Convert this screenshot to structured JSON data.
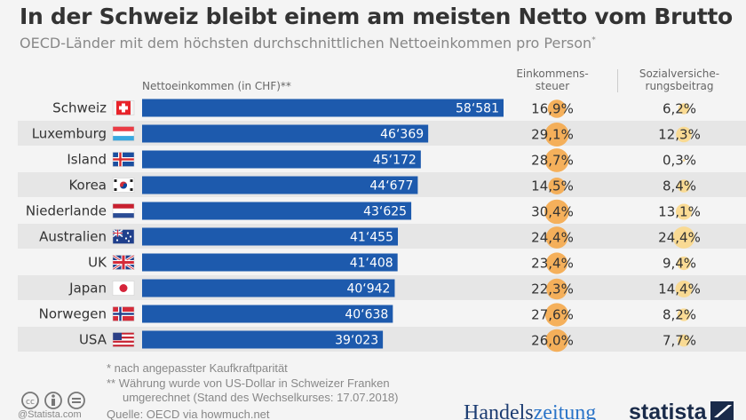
{
  "title": "In der Schweiz bleibt einem am meisten Netto vom Brutto",
  "subtitle": "OECD-Länder mit dem höchsten durchschnittlichen Nettoeinkommen pro Person",
  "subtitle_mark": "*",
  "columns": {
    "net_income": "Nettoeinkommen (in CHF)**",
    "income_tax_1": "Einkommens-",
    "income_tax_2": "steuer",
    "social_1": "Sozialversiche-",
    "social_2": "rungsbeitrag"
  },
  "chart_data": {
    "type": "bar",
    "orientation": "horizontal",
    "categories": [
      "Schweiz",
      "Luxemburg",
      "Island",
      "Korea",
      "Niederlande",
      "Australien",
      "UK",
      "Japan",
      "Norwegen",
      "USA"
    ],
    "series": [
      {
        "name": "Nettoeinkommen (in CHF)**",
        "values": [
          58581,
          46369,
          45172,
          44677,
          43625,
          41455,
          41408,
          40942,
          40638,
          39023
        ],
        "labels": [
          "58‘581",
          "46‘369",
          "45‘172",
          "44‘677",
          "43‘625",
          "41‘455",
          "41‘408",
          "40‘942",
          "40‘638",
          "39‘023"
        ]
      },
      {
        "name": "Einkommenssteuer",
        "values": [
          16.9,
          29.1,
          28.7,
          14.5,
          30.4,
          24.4,
          23.4,
          22.3,
          27.6,
          26.0
        ],
        "labels": [
          "16,9%",
          "29,1%",
          "28,7%",
          "14,5%",
          "30,4%",
          "24,4%",
          "23,4%",
          "22,3%",
          "27,6%",
          "26,0%"
        ]
      },
      {
        "name": "Sozialversicherungsbeitrag",
        "values": [
          6.2,
          12.3,
          0.3,
          8.4,
          13.1,
          24.4,
          9.4,
          14.4,
          8.2,
          7.7
        ],
        "labels": [
          "6,2%",
          "12,3%",
          "0,3%",
          "8,4%",
          "13,1%",
          "24,4%",
          "9,4%",
          "14,4%",
          "8,2%",
          "7,7%"
        ]
      }
    ],
    "flags": [
      "ch",
      "lu",
      "is",
      "kr",
      "nl",
      "au",
      "gb",
      "jp",
      "no",
      "us"
    ]
  },
  "colors": {
    "bar": "#1d5aad",
    "tax_circle": "#f5a84a",
    "social_circle": "#fbd88a",
    "row_alt": "#e6e6e6"
  },
  "footnotes": {
    "f1": "*   nach angepasster Kaufkraftparität",
    "f2": "** Währung wurde von US-Dollar in Schweizer Franken",
    "f3": "umgerechnet (Stand des Wechselkurses: 17.07.2018)",
    "source": "Quelle: OECD via howmuch.net",
    "credit": "@Statista.com"
  },
  "logos": {
    "handelszeitung_a": "Handels",
    "handelszeitung_b": "zeitung",
    "statista": "statista"
  }
}
